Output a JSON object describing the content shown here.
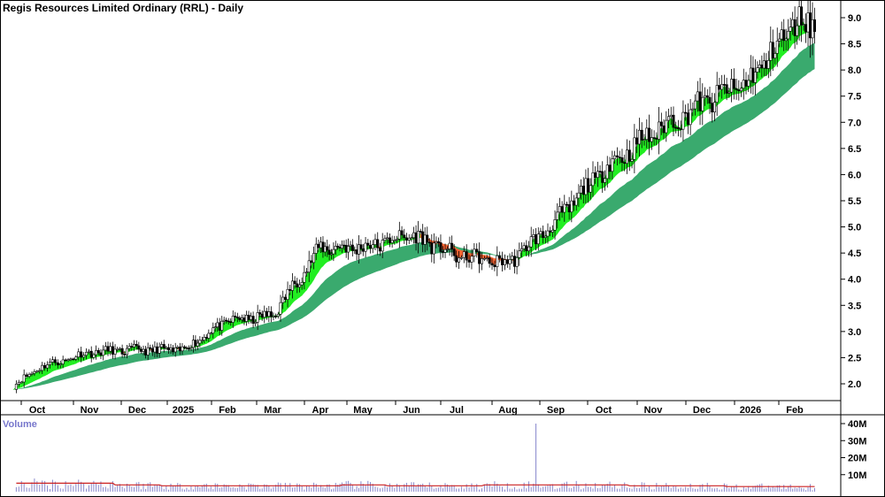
{
  "chart_data": [
    {
      "type": "candlestick",
      "title": "Regis Resources Limited Ordinary (RRL) - Daily",
      "ylim": [
        1.7,
        9.4
      ],
      "y_ticks": [
        "9.0",
        "8.5",
        "8.0",
        "7.5",
        "7.0",
        "6.5",
        "6.0",
        "5.5",
        "5.0",
        "4.5",
        "4.0",
        "3.5",
        "3.0",
        "2.5",
        "2.0"
      ],
      "x_ticks": [
        "Oct",
        "Nov",
        "Dec",
        "2025",
        "Feb",
        "Mar",
        "Apr",
        "May",
        "Jun",
        "Jul",
        "Aug",
        "Sep",
        "Oct",
        "Nov",
        "Dec",
        "2026",
        "Feb"
      ],
      "grid": false,
      "colors": {
        "short_ma_band_up": "#22ee22",
        "short_ma_band_down": "#ff6633",
        "long_ma_band": "#3aaa6e",
        "candle": "#000000",
        "volume_bars": "#8888cc",
        "volume_average": "#cc2222"
      },
      "series": [
        {
          "x": [
            "Oct",
            "Nov",
            "Dec",
            "2025",
            "Feb",
            "Mar",
            "Apr",
            "May",
            "Jun",
            "Jul",
            "Aug",
            "Sep",
            "Oct",
            "Nov",
            "Dec",
            "2026",
            "Feb"
          ],
          "close": [
            2.3,
            2.6,
            2.65,
            2.65,
            3.2,
            3.3,
            4.6,
            4.6,
            4.85,
            4.45,
            4.3,
            5.1,
            6.1,
            6.8,
            7.35,
            7.8,
            8.9
          ]
        }
      ]
    },
    {
      "type": "bar",
      "title": "Volume",
      "ylim": [
        0,
        40
      ],
      "y_ticks": [
        "40M",
        "30M",
        "20M",
        "10M"
      ],
      "series": [
        {
          "x": [
            "Oct",
            "Nov",
            "Dec",
            "2025",
            "Feb",
            "Mar",
            "Apr",
            "May",
            "Jun",
            "Jul",
            "Aug",
            "Sep",
            "Oct",
            "Nov",
            "Dec",
            "2026",
            "Feb"
          ],
          "values": [
            5,
            5,
            4,
            3.5,
            3.5,
            3.5,
            3.5,
            4,
            3.5,
            3.5,
            4,
            4,
            4,
            3.5,
            3.5,
            3,
            3
          ]
        }
      ]
    }
  ]
}
